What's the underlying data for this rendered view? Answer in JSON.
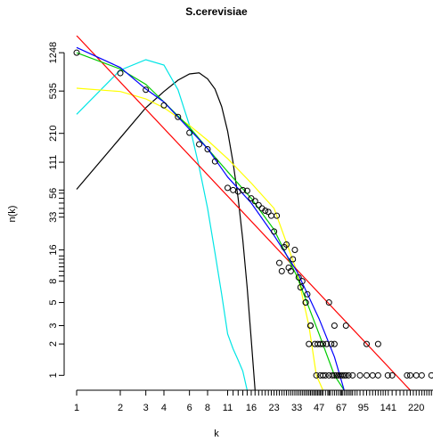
{
  "chart_data": {
    "type": "scatter",
    "title": "S.cerevisiae",
    "xlabel": "k",
    "ylabel": "n(k)",
    "log_x": true,
    "log_y": true,
    "xlim": [
      0.82,
      287
    ],
    "ylim": [
      0.72,
      1820
    ],
    "xticks": [
      1,
      2,
      3,
      4,
      6,
      8,
      11,
      16,
      23,
      33,
      47,
      67,
      95,
      141,
      220
    ],
    "yticks": [
      1,
      2,
      3,
      5,
      8,
      16,
      33,
      56,
      111,
      210,
      535,
      1248
    ],
    "xminorticks": [
      12,
      13,
      14,
      15,
      17,
      18,
      19,
      20,
      21,
      22,
      24,
      25,
      26,
      27,
      28,
      29,
      30,
      31,
      32,
      34,
      35,
      36,
      37,
      38,
      39,
      40,
      41,
      42,
      43,
      44,
      45,
      46,
      48,
      49,
      50,
      52,
      54,
      55,
      56,
      58,
      60,
      62,
      64,
      66,
      68,
      70,
      72,
      74,
      76,
      78,
      80,
      83,
      86,
      90,
      100,
      105,
      110,
      115,
      120,
      125,
      130,
      135,
      150,
      160,
      170,
      180,
      190,
      200,
      210,
      230,
      240,
      250,
      260,
      270,
      280
    ],
    "yminorticks": [
      9,
      10,
      11,
      12,
      13,
      14,
      36,
      40,
      45,
      50,
      60
    ],
    "point_color": "#000000",
    "x": [
      1,
      2,
      3,
      4,
      5,
      6,
      7,
      8,
      9,
      11,
      12,
      13,
      14,
      15,
      16,
      17,
      18,
      19,
      20,
      21,
      22,
      23,
      24,
      25,
      26,
      27,
      28,
      29,
      30,
      31,
      32,
      34,
      35,
      36,
      38,
      39,
      40,
      41,
      44,
      46,
      48,
      50,
      53,
      57,
      60,
      100,
      120,
      41,
      60,
      72,
      38,
      55,
      45,
      48,
      50,
      52,
      55,
      58,
      60,
      62,
      64,
      66,
      68,
      70,
      72,
      75,
      80,
      90,
      100,
      110,
      120,
      140,
      150,
      190,
      200,
      220,
      240,
      280
    ],
    "y": [
      1248,
      795,
      550,
      390,
      302,
      213,
      165,
      148,
      113,
      63,
      60,
      58,
      60,
      59,
      50,
      47,
      43,
      40,
      38,
      37,
      34,
      24,
      34,
      12,
      10,
      17,
      18,
      10.8,
      10,
      13,
      16,
      8.7,
      7,
      8,
      5,
      6,
      2,
      3,
      2,
      2,
      2,
      2,
      2,
      2,
      2,
      2,
      2,
      3,
      3,
      3,
      5,
      5,
      1,
      1,
      1,
      1,
      1,
      1,
      1,
      1,
      1,
      1,
      1,
      1,
      1,
      1,
      1,
      1,
      1,
      1,
      1,
      1,
      1,
      1,
      1,
      1,
      1,
      1
    ],
    "lines": [
      {
        "color": "#000000",
        "x": [
          1,
          2,
          3,
          4,
          5,
          6,
          7,
          8,
          9,
          10,
          11,
          12,
          13,
          14,
          15,
          16,
          17
        ],
        "values": [
          61,
          190,
          370,
          530,
          680,
          780,
          800,
          700,
          560,
          380,
          220,
          110,
          50,
          20,
          7,
          2.2,
          0.72
        ]
      },
      {
        "color": "#00e5e5",
        "x": [
          1,
          2,
          3,
          4,
          5,
          6,
          7,
          8,
          9,
          10,
          11,
          12,
          13,
          14,
          15
        ],
        "values": [
          320,
          850,
          1070,
          950,
          550,
          250,
          100,
          40,
          15,
          6,
          2.5,
          1.8,
          1.4,
          1.1,
          0.72
        ]
      },
      {
        "color": "#ffff00",
        "x": [
          1,
          2,
          3,
          4,
          6,
          8,
          11,
          16,
          23,
          33,
          40,
          45,
          50
        ],
        "values": [
          570,
          530,
          450,
          370,
          250,
          180,
          120,
          70,
          40,
          10,
          3,
          1,
          0.72
        ]
      },
      {
        "color": "#ff0000",
        "x": [
          1,
          200
        ],
        "values": [
          1820,
          0.72
        ]
      },
      {
        "color": "#00cc00",
        "x": [
          1,
          2,
          3,
          4,
          6,
          8,
          11,
          16,
          23,
          33,
          47,
          60,
          70
        ],
        "values": [
          1248,
          870,
          620,
          420,
          240,
          150,
          90,
          50,
          25,
          9,
          2.5,
          1,
          0.72
        ]
      },
      {
        "color": "#0000ff",
        "x": [
          1,
          2,
          3,
          4,
          6,
          8,
          11,
          16,
          23,
          33,
          47,
          60,
          70
        ],
        "values": [
          1400,
          900,
          560,
          420,
          230,
          150,
          80,
          45,
          22,
          10,
          3.5,
          1.5,
          0.72
        ]
      }
    ]
  }
}
